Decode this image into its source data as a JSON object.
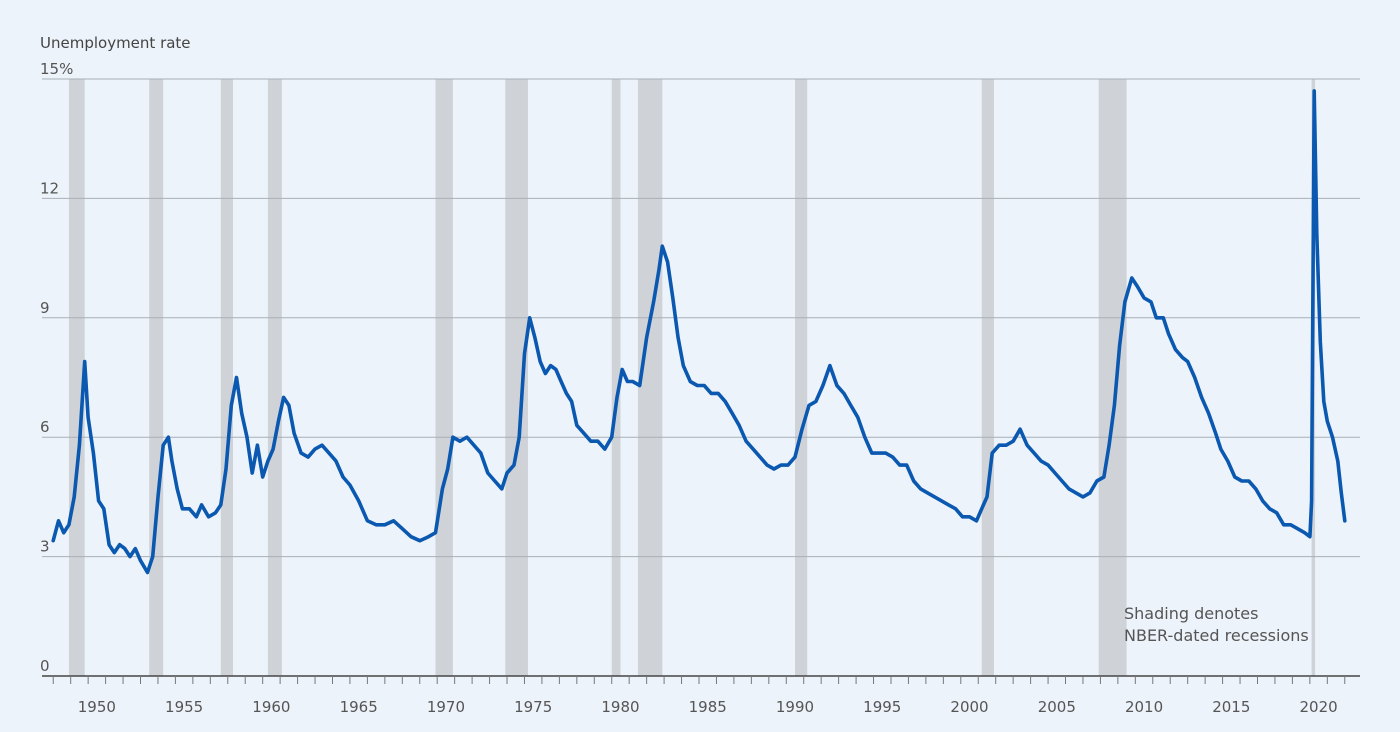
{
  "chart_data": {
    "type": "line",
    "ylabel": "Unemployment rate",
    "ylim": [
      0,
      15
    ],
    "xlim": [
      1947.7,
      2022.3
    ],
    "y_ticks": [
      "15%",
      "12",
      "9",
      "6",
      "3",
      "0"
    ],
    "x_tick_labels": [
      "1950",
      "1955",
      "1960",
      "1965",
      "1970",
      "1975",
      "1980",
      "1985",
      "1990",
      "1995",
      "2000",
      "2005",
      "2010",
      "2015",
      "2020"
    ],
    "annotation": [
      "Shading denotes",
      "NBER-dated recessions"
    ],
    "grid": true,
    "legend": "none",
    "colors": {
      "line": "#0a58b0",
      "recession": "#cfd3d8",
      "grid": "#a9afb6",
      "axis": "#444444"
    },
    "recessions": [
      [
        1948.9,
        1949.8
      ],
      [
        1953.5,
        1954.3
      ],
      [
        1957.6,
        1958.3
      ],
      [
        1960.3,
        1961.1
      ],
      [
        1969.9,
        1970.9
      ],
      [
        1973.9,
        1975.2
      ],
      [
        1980.0,
        1980.5
      ],
      [
        1981.5,
        1982.9
      ],
      [
        1990.5,
        1991.2
      ],
      [
        2001.2,
        2001.9
      ],
      [
        2007.9,
        2009.5
      ],
      [
        2020.1,
        2020.3
      ]
    ],
    "series": [
      {
        "values": [
          [
            1948.0,
            3.4
          ],
          [
            1948.3,
            3.9
          ],
          [
            1948.6,
            3.6
          ],
          [
            1948.9,
            3.8
          ],
          [
            1949.2,
            4.5
          ],
          [
            1949.5,
            5.8
          ],
          [
            1949.8,
            7.9
          ],
          [
            1950.0,
            6.5
          ],
          [
            1950.3,
            5.6
          ],
          [
            1950.6,
            4.4
          ],
          [
            1950.9,
            4.2
          ],
          [
            1951.2,
            3.3
          ],
          [
            1951.5,
            3.1
          ],
          [
            1951.8,
            3.3
          ],
          [
            1952.1,
            3.2
          ],
          [
            1952.4,
            3.0
          ],
          [
            1952.7,
            3.2
          ],
          [
            1953.0,
            2.9
          ],
          [
            1953.4,
            2.6
          ],
          [
            1953.7,
            3.0
          ],
          [
            1954.0,
            4.5
          ],
          [
            1954.3,
            5.8
          ],
          [
            1954.6,
            6.0
          ],
          [
            1954.8,
            5.4
          ],
          [
            1955.1,
            4.7
          ],
          [
            1955.4,
            4.2
          ],
          [
            1955.8,
            4.2
          ],
          [
            1956.2,
            4.0
          ],
          [
            1956.5,
            4.3
          ],
          [
            1956.9,
            4.0
          ],
          [
            1957.3,
            4.1
          ],
          [
            1957.6,
            4.3
          ],
          [
            1957.9,
            5.2
          ],
          [
            1958.2,
            6.8
          ],
          [
            1958.5,
            7.5
          ],
          [
            1958.8,
            6.6
          ],
          [
            1959.1,
            6.0
          ],
          [
            1959.4,
            5.1
          ],
          [
            1959.7,
            5.8
          ],
          [
            1960.0,
            5.0
          ],
          [
            1960.3,
            5.4
          ],
          [
            1960.6,
            5.7
          ],
          [
            1960.9,
            6.4
          ],
          [
            1961.2,
            7.0
          ],
          [
            1961.5,
            6.8
          ],
          [
            1961.8,
            6.1
          ],
          [
            1962.2,
            5.6
          ],
          [
            1962.6,
            5.5
          ],
          [
            1963.0,
            5.7
          ],
          [
            1963.4,
            5.8
          ],
          [
            1963.8,
            5.6
          ],
          [
            1964.2,
            5.4
          ],
          [
            1964.6,
            5.0
          ],
          [
            1965.0,
            4.8
          ],
          [
            1965.5,
            4.4
          ],
          [
            1966.0,
            3.9
          ],
          [
            1966.5,
            3.8
          ],
          [
            1967.0,
            3.8
          ],
          [
            1967.5,
            3.9
          ],
          [
            1968.0,
            3.7
          ],
          [
            1968.5,
            3.5
          ],
          [
            1969.0,
            3.4
          ],
          [
            1969.5,
            3.5
          ],
          [
            1969.9,
            3.6
          ],
          [
            1970.3,
            4.7
          ],
          [
            1970.6,
            5.2
          ],
          [
            1970.9,
            6.0
          ],
          [
            1971.3,
            5.9
          ],
          [
            1971.7,
            6.0
          ],
          [
            1972.1,
            5.8
          ],
          [
            1972.5,
            5.6
          ],
          [
            1972.9,
            5.1
          ],
          [
            1973.3,
            4.9
          ],
          [
            1973.7,
            4.7
          ],
          [
            1974.0,
            5.1
          ],
          [
            1974.4,
            5.3
          ],
          [
            1974.7,
            6.0
          ],
          [
            1975.0,
            8.1
          ],
          [
            1975.3,
            9.0
          ],
          [
            1975.6,
            8.5
          ],
          [
            1975.9,
            7.9
          ],
          [
            1976.2,
            7.6
          ],
          [
            1976.5,
            7.8
          ],
          [
            1976.8,
            7.7
          ],
          [
            1977.1,
            7.4
          ],
          [
            1977.4,
            7.1
          ],
          [
            1977.7,
            6.9
          ],
          [
            1978.0,
            6.3
          ],
          [
            1978.4,
            6.1
          ],
          [
            1978.8,
            5.9
          ],
          [
            1979.2,
            5.9
          ],
          [
            1979.6,
            5.7
          ],
          [
            1980.0,
            6.0
          ],
          [
            1980.3,
            7.0
          ],
          [
            1980.6,
            7.7
          ],
          [
            1980.9,
            7.4
          ],
          [
            1981.2,
            7.4
          ],
          [
            1981.6,
            7.3
          ],
          [
            1982.0,
            8.5
          ],
          [
            1982.4,
            9.4
          ],
          [
            1982.7,
            10.2
          ],
          [
            1982.9,
            10.8
          ],
          [
            1983.2,
            10.4
          ],
          [
            1983.5,
            9.5
          ],
          [
            1983.8,
            8.5
          ],
          [
            1984.1,
            7.8
          ],
          [
            1984.5,
            7.4
          ],
          [
            1984.9,
            7.3
          ],
          [
            1985.3,
            7.3
          ],
          [
            1985.7,
            7.1
          ],
          [
            1986.1,
            7.1
          ],
          [
            1986.5,
            6.9
          ],
          [
            1986.9,
            6.6
          ],
          [
            1987.3,
            6.3
          ],
          [
            1987.7,
            5.9
          ],
          [
            1988.1,
            5.7
          ],
          [
            1988.5,
            5.5
          ],
          [
            1988.9,
            5.3
          ],
          [
            1989.3,
            5.2
          ],
          [
            1989.7,
            5.3
          ],
          [
            1990.1,
            5.3
          ],
          [
            1990.5,
            5.5
          ],
          [
            1990.9,
            6.2
          ],
          [
            1991.3,
            6.8
          ],
          [
            1991.7,
            6.9
          ],
          [
            1992.1,
            7.3
          ],
          [
            1992.5,
            7.8
          ],
          [
            1992.9,
            7.3
          ],
          [
            1993.3,
            7.1
          ],
          [
            1993.7,
            6.8
          ],
          [
            1994.1,
            6.5
          ],
          [
            1994.5,
            6.0
          ],
          [
            1994.9,
            5.6
          ],
          [
            1995.3,
            5.6
          ],
          [
            1995.7,
            5.6
          ],
          [
            1996.1,
            5.5
          ],
          [
            1996.5,
            5.3
          ],
          [
            1996.9,
            5.3
          ],
          [
            1997.3,
            4.9
          ],
          [
            1997.7,
            4.7
          ],
          [
            1998.1,
            4.6
          ],
          [
            1998.5,
            4.5
          ],
          [
            1998.9,
            4.4
          ],
          [
            1999.3,
            4.3
          ],
          [
            1999.7,
            4.2
          ],
          [
            2000.1,
            4.0
          ],
          [
            2000.5,
            4.0
          ],
          [
            2000.9,
            3.9
          ],
          [
            2001.2,
            4.2
          ],
          [
            2001.5,
            4.5
          ],
          [
            2001.8,
            5.6
          ],
          [
            2002.2,
            5.8
          ],
          [
            2002.6,
            5.8
          ],
          [
            2003.0,
            5.9
          ],
          [
            2003.4,
            6.2
          ],
          [
            2003.8,
            5.8
          ],
          [
            2004.2,
            5.6
          ],
          [
            2004.6,
            5.4
          ],
          [
            2005.0,
            5.3
          ],
          [
            2005.4,
            5.1
          ],
          [
            2005.8,
            4.9
          ],
          [
            2006.2,
            4.7
          ],
          [
            2006.6,
            4.6
          ],
          [
            2007.0,
            4.5
          ],
          [
            2007.4,
            4.6
          ],
          [
            2007.8,
            4.9
          ],
          [
            2008.2,
            5.0
          ],
          [
            2008.5,
            5.8
          ],
          [
            2008.8,
            6.8
          ],
          [
            2009.1,
            8.3
          ],
          [
            2009.4,
            9.4
          ],
          [
            2009.8,
            10.0
          ],
          [
            2010.1,
            9.8
          ],
          [
            2010.5,
            9.5
          ],
          [
            2010.9,
            9.4
          ],
          [
            2011.2,
            9.0
          ],
          [
            2011.6,
            9.0
          ],
          [
            2011.9,
            8.6
          ],
          [
            2012.3,
            8.2
          ],
          [
            2012.7,
            8.0
          ],
          [
            2013.0,
            7.9
          ],
          [
            2013.4,
            7.5
          ],
          [
            2013.8,
            7.0
          ],
          [
            2014.2,
            6.6
          ],
          [
            2014.6,
            6.1
          ],
          [
            2014.9,
            5.7
          ],
          [
            2015.3,
            5.4
          ],
          [
            2015.7,
            5.0
          ],
          [
            2016.1,
            4.9
          ],
          [
            2016.5,
            4.9
          ],
          [
            2016.9,
            4.7
          ],
          [
            2017.3,
            4.4
          ],
          [
            2017.7,
            4.2
          ],
          [
            2018.1,
            4.1
          ],
          [
            2018.5,
            3.8
          ],
          [
            2018.9,
            3.8
          ],
          [
            2019.3,
            3.7
          ],
          [
            2019.7,
            3.6
          ],
          [
            2020.0,
            3.5
          ],
          [
            2020.1,
            4.4
          ],
          [
            2020.25,
            14.7
          ],
          [
            2020.4,
            11.1
          ],
          [
            2020.6,
            8.4
          ],
          [
            2020.8,
            6.9
          ],
          [
            2021.0,
            6.4
          ],
          [
            2021.3,
            6.0
          ],
          [
            2021.6,
            5.4
          ],
          [
            2021.8,
            4.6
          ],
          [
            2022.0,
            3.9
          ]
        ]
      }
    ]
  }
}
